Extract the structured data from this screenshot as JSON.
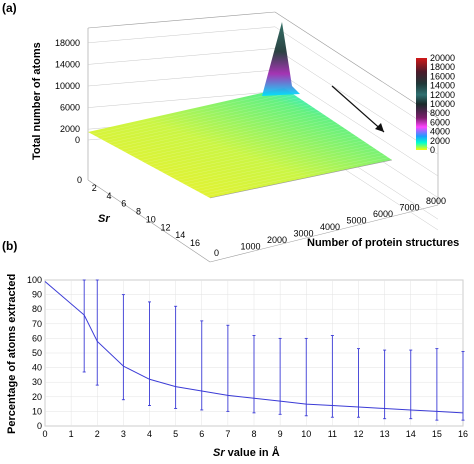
{
  "panel_a": {
    "label": "(a)",
    "zlabel": "Total number of atoms",
    "ylabel": "Sr",
    "xlabel": "Number of protein structures",
    "z_ticks": [
      "0",
      "2000",
      "6000",
      "10000",
      "14000",
      "18000"
    ],
    "sr_ticks": [
      "0",
      "2",
      "4",
      "6",
      "8",
      "10",
      "12",
      "14",
      "16"
    ],
    "x_ticks": [
      "0",
      "1000",
      "2000",
      "3000",
      "4000",
      "5000",
      "6000",
      "7000",
      "8000"
    ],
    "colorbar_ticks": [
      "0",
      "2000",
      "4000",
      "6000",
      "8000",
      "10000",
      "12000",
      "14000",
      "16000",
      "18000",
      "20000"
    ]
  },
  "chart_data": [
    {
      "type": "surface",
      "x": "Number of protein structures",
      "y": "Sr",
      "z": "Total number of atoms",
      "xlim": [
        0,
        8000
      ],
      "ylim": [
        0,
        16
      ],
      "zlim": [
        0,
        20000
      ],
      "colorbar": {
        "min": 0,
        "max": 20000
      }
    },
    {
      "type": "line",
      "title": "",
      "xlabel": "Sr value in Å",
      "ylabel": "Percentage of atoms extracted",
      "xlim": [
        0,
        16
      ],
      "ylim": [
        0,
        100
      ],
      "x_ticks": [
        "0",
        "1",
        "2",
        "3",
        "4",
        "5",
        "6",
        "7",
        "8",
        "9",
        "10",
        "11",
        "12",
        "13",
        "14",
        "15",
        "16"
      ],
      "y_ticks": [
        "0",
        "10",
        "20",
        "30",
        "40",
        "50",
        "60",
        "70",
        "80",
        "90",
        "100"
      ],
      "series": [
        {
          "color": "#3b3bd6",
          "points": [
            {
              "x": 0,
              "y": 99
            },
            {
              "x": 1.5,
              "y": 76,
              "err_low": 37,
              "err_high": 100
            },
            {
              "x": 2,
              "y": 58,
              "err_low": 28,
              "err_high": 100
            },
            {
              "x": 3,
              "y": 41,
              "err_low": 18,
              "err_high": 90
            },
            {
              "x": 4,
              "y": 32,
              "err_low": 14,
              "err_high": 85
            },
            {
              "x": 5,
              "y": 27,
              "err_low": 12,
              "err_high": 82
            },
            {
              "x": 6,
              "y": 24,
              "err_low": 11,
              "err_high": 72
            },
            {
              "x": 7,
              "y": 21,
              "err_low": 10,
              "err_high": 69
            },
            {
              "x": 8,
              "y": 19,
              "err_low": 9,
              "err_high": 62
            },
            {
              "x": 9,
              "y": 17,
              "err_low": 8,
              "err_high": 60
            },
            {
              "x": 10,
              "y": 15,
              "err_low": 7,
              "err_high": 60
            },
            {
              "x": 11,
              "y": 14,
              "err_low": 6,
              "err_high": 62
            },
            {
              "x": 12,
              "y": 13,
              "err_low": 6,
              "err_high": 53
            },
            {
              "x": 13,
              "y": 12,
              "err_low": 5,
              "err_high": 52
            },
            {
              "x": 14,
              "y": 11,
              "err_low": 5,
              "err_high": 52
            },
            {
              "x": 15,
              "y": 10,
              "err_low": 4,
              "err_high": 53
            },
            {
              "x": 16,
              "y": 9,
              "err_low": 4,
              "err_high": 51
            }
          ]
        }
      ]
    }
  ],
  "panel_b": {
    "label": "(b)",
    "xlabel_italic": "Sr",
    "xlabel_rest": " value in Å",
    "ylabel": "Percentage of atoms extracted"
  }
}
